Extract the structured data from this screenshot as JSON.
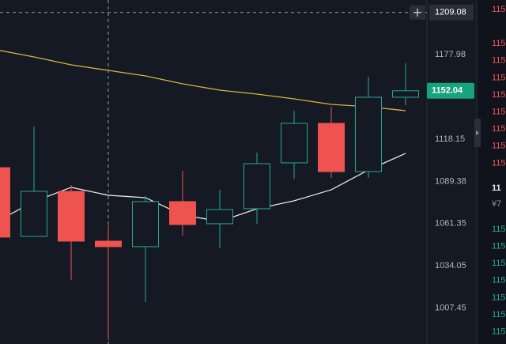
{
  "chart_data": {
    "type": "candlestick",
    "categories": [
      null,
      null,
      null,
      null,
      null,
      null,
      null,
      null,
      null,
      null,
      null,
      null
    ],
    "open": [
      1098.68,
      1053.05,
      1082.73,
      1049.97,
      1046.39,
      1075.9,
      1061.3,
      1071.17,
      1101.92,
      1129.11,
      1096.01,
      1147.43
    ],
    "high": [
      1098.68,
      1126.91,
      1086.96,
      1060.27,
      1079.57,
      1096.55,
      1083.79,
      1108.92,
      1137.95,
      1140.73,
      1162.07,
      1171.74
    ],
    "low": [
      1052.55,
      1053.05,
      1025.18,
      987.87,
      1011.27,
      1053.56,
      1045.37,
      1061.3,
      1091.21,
      1091.74,
      1091.74,
      1141.85
    ],
    "close": [
      1052.55,
      1082.73,
      1049.97,
      1046.39,
      1075.9,
      1060.78,
      1070.65,
      1101.37,
      1129.11,
      1096.01,
      1147.43,
      1152.04
    ],
    "up_color": "#26a69a",
    "down_color": "#ef5350",
    "ma_lines": [
      {
        "color": "#d9b43a",
        "values": [
          1181.5,
          1176.33,
          1170.59,
          1166.61,
          1162.65,
          1156.98,
          1152.47,
          1149.67,
          1146.3,
          1142.4,
          1140.73,
          1137.95
        ]
      },
      {
        "color": "#e6e6e6",
        "values": [
          1062.85,
          1075.9,
          1085.38,
          1080.1,
          1078.51,
          1067.01,
          1062.85,
          1071.17,
          1076.42,
          1083.79,
          1097.08,
          1108.38
        ]
      }
    ],
    "ylim": [
      985.4,
      1218.4
    ],
    "log_scale": true,
    "yticks": [
      1177.98,
      1118.15,
      1089.38,
      1061.35,
      1034.05,
      1007.45
    ],
    "crosshair_price": 1209.08,
    "grid": false
  },
  "order_book": {
    "asks": [
      "115",
      "115",
      "115",
      "115",
      "115",
      "115",
      "115",
      "115",
      "115"
    ],
    "last": "11",
    "fiat": "¥7",
    "bids": [
      "115",
      "115",
      "115",
      "115",
      "115",
      "115",
      "115"
    ]
  }
}
